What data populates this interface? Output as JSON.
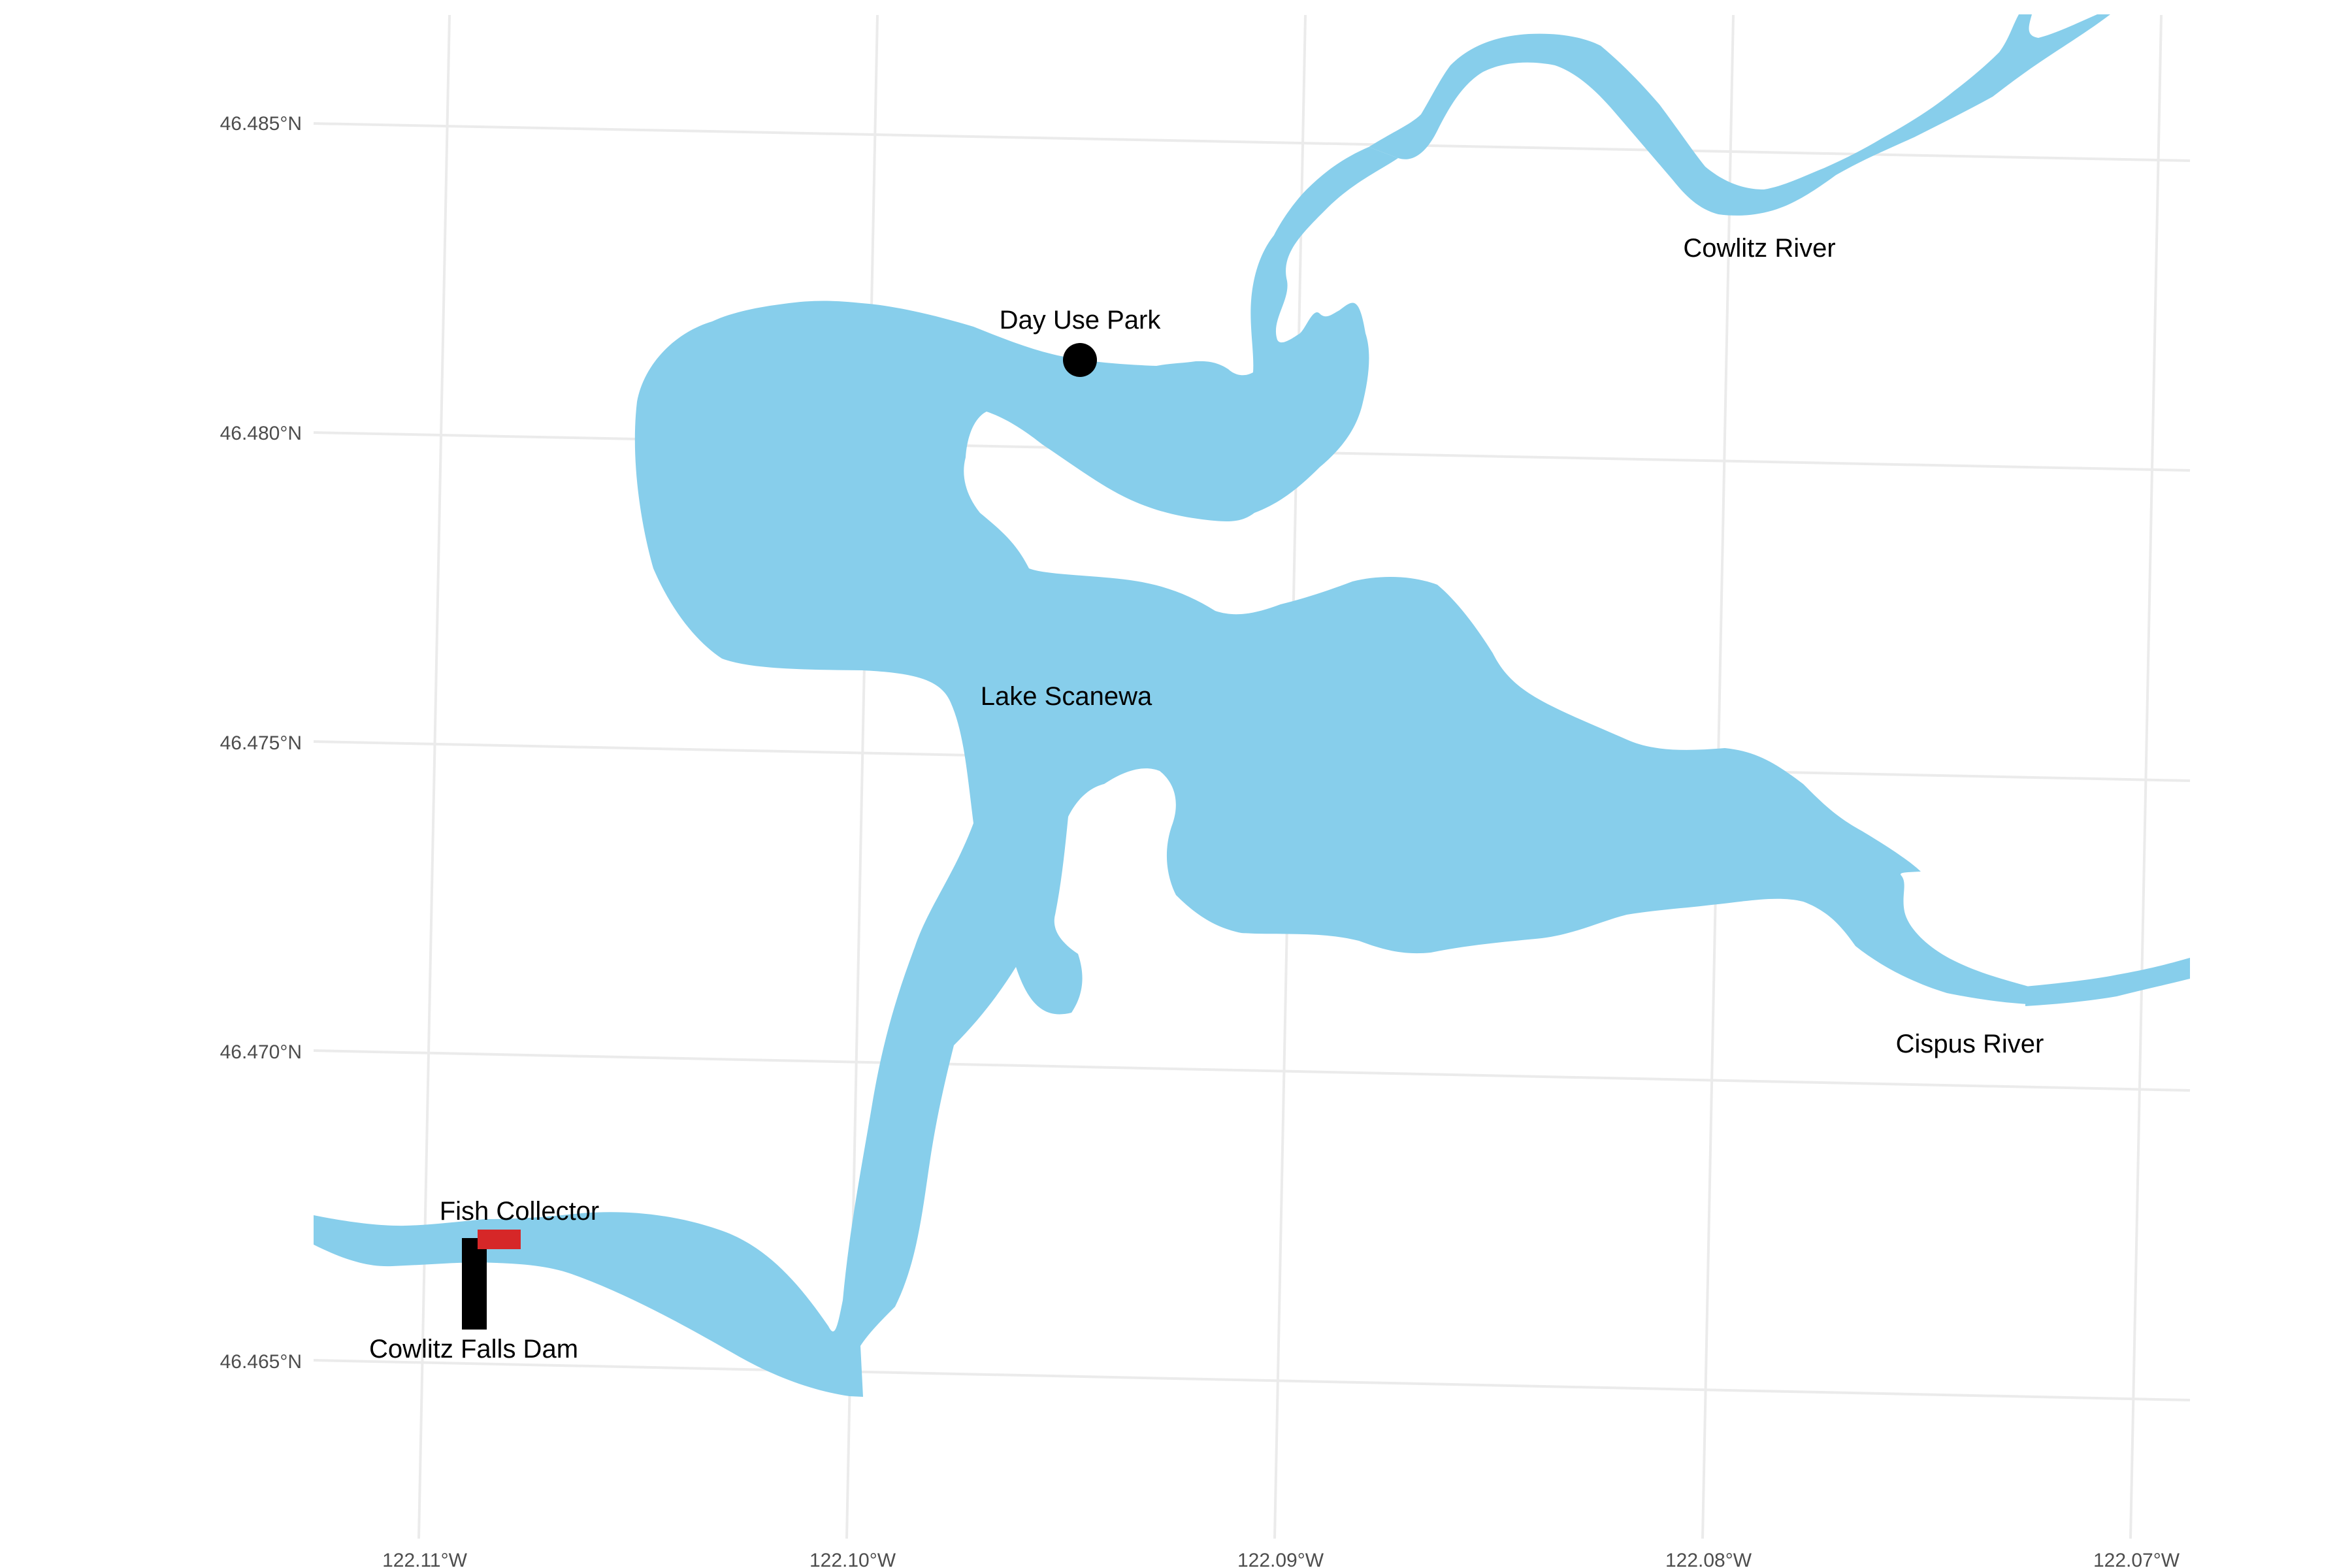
{
  "map": {
    "colors": {
      "water": "#87CEEB",
      "grid": "#ebebeb",
      "dam": "#000000",
      "fish_collector": "#d62728",
      "park": "#000000"
    },
    "axes": {
      "y_ticks": [
        "46.485°N",
        "46.480°N",
        "46.475°N",
        "46.470°N",
        "46.465°N"
      ],
      "x_ticks": [
        "122.11°W",
        "122.10°W",
        "122.09°W",
        "122.08°W",
        "122.07°W"
      ]
    },
    "labels": {
      "cowlitz_river": "Cowlitz River",
      "day_use_park": "Day Use Park",
      "lake": "Lake Scanewa",
      "cispus_river": "Cispus River",
      "fish_collector": "Fish Collector",
      "dam": "Cowlitz Falls Dam"
    }
  }
}
